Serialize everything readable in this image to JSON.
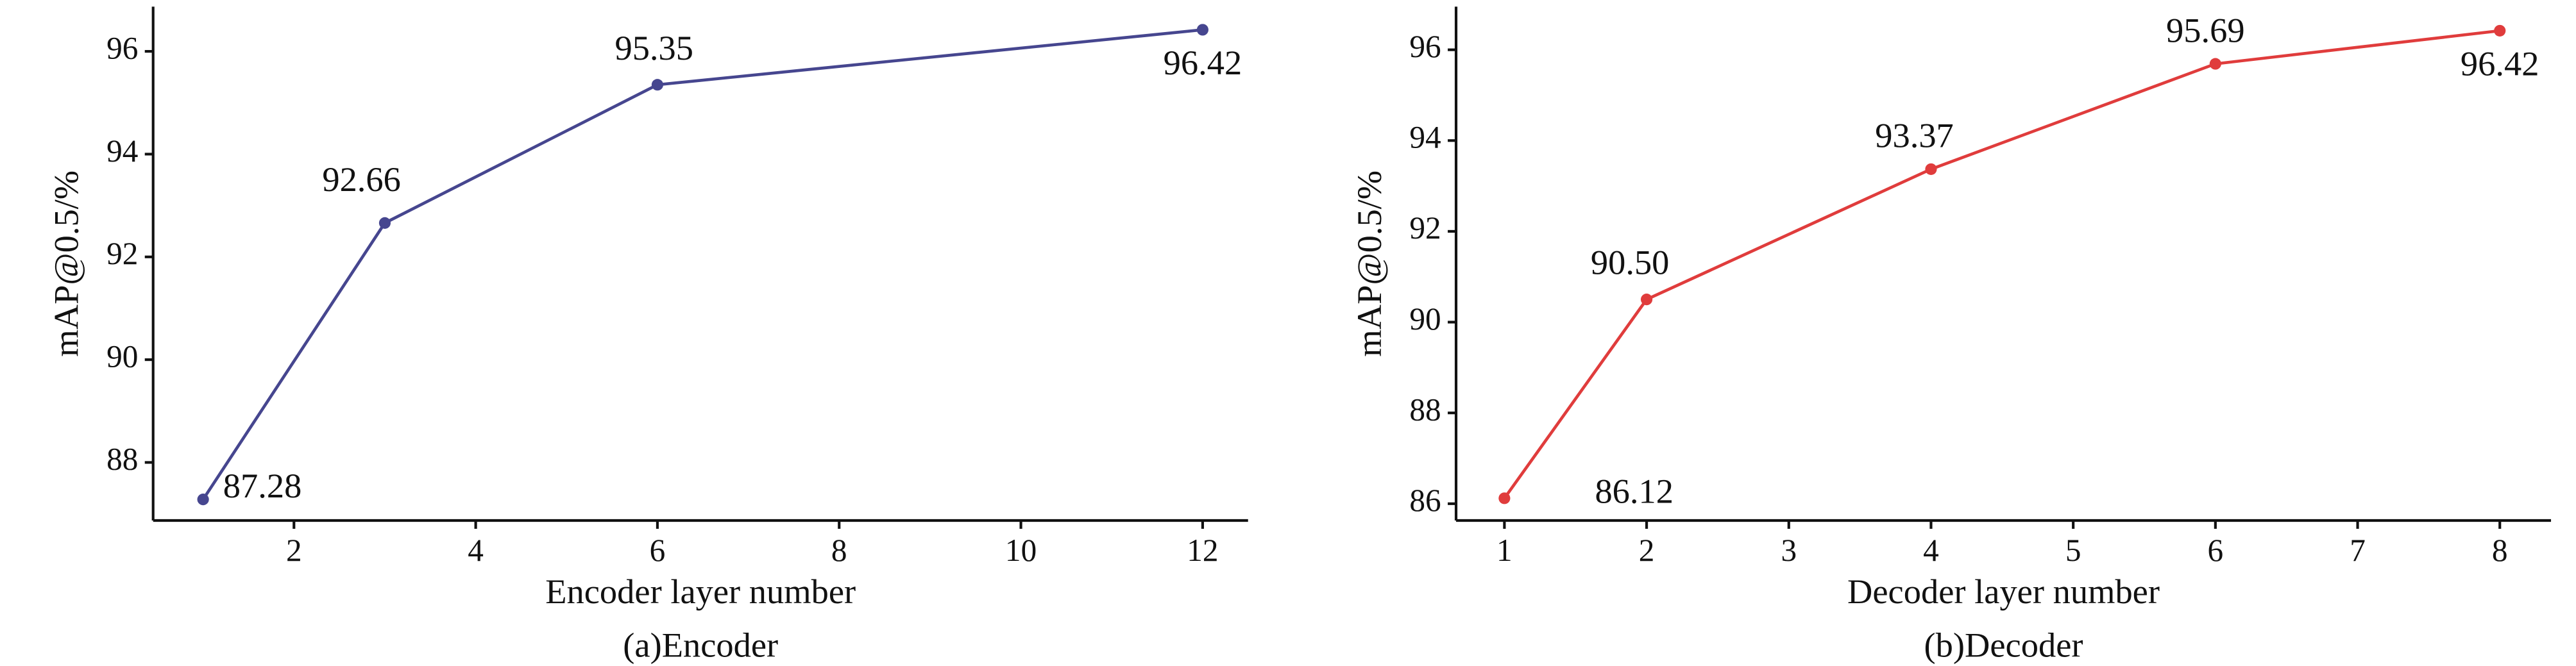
{
  "chart_data": [
    {
      "type": "line",
      "x": [
        1,
        3,
        6,
        12
      ],
      "values": [
        87.28,
        92.66,
        95.35,
        96.42
      ],
      "color": "#46468f",
      "xlim": [
        0.45,
        12.5
      ],
      "xticks": [
        2,
        4,
        6,
        8,
        10,
        12
      ],
      "ylim": [
        86.87,
        96.87
      ],
      "yticks": [
        88,
        90,
        92,
        94,
        96
      ],
      "xlabel": "Encoder layer number",
      "ylabel": "mAP@0.5/%",
      "caption": "(a)Encoder"
    },
    {
      "type": "line",
      "x": [
        1,
        2,
        4,
        6,
        8
      ],
      "values": [
        86.12,
        90.5,
        93.37,
        95.69,
        96.42
      ],
      "value_labels": [
        "86.12",
        "90.50",
        "93.37",
        "95.69",
        "96.42"
      ],
      "color": "#e03c3c",
      "xlim": [
        0.66,
        8.36
      ],
      "xticks": [
        1,
        2,
        3,
        4,
        5,
        6,
        7,
        8
      ],
      "ylim": [
        85.63,
        96.95
      ],
      "yticks": [
        86,
        88,
        90,
        92,
        94,
        96
      ],
      "xlabel": "Decoder layer number",
      "ylabel": "mAP@0.5/%",
      "caption": "(b)Decoder"
    }
  ]
}
